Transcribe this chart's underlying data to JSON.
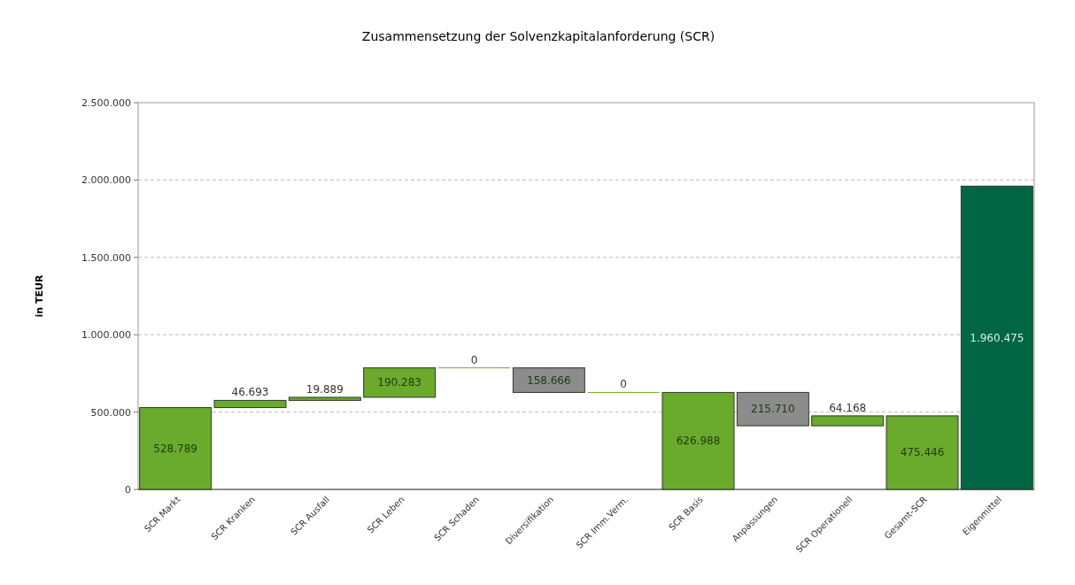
{
  "chart_data": {
    "type": "bar",
    "title": "Zusammensetzung der Solvenzkapitalanforderung (SCR)",
    "ylabel": "in TEUR",
    "categories": [
      "SCR Markt",
      "SCR Kranken",
      "SCR Ausfall",
      "SCR Leben",
      "SCR Schaden",
      "Diversifikation",
      "SCR Imm.Verm.",
      "SCR Basis",
      "Anpassungen",
      "SCR Operationell",
      "Gesamt-SCR",
      "Eigenmittel"
    ],
    "values": [
      528789,
      46693,
      19889,
      190283,
      0,
      158666,
      0,
      626988,
      215710,
      64168,
      475446,
      1960475
    ],
    "base": [
      0,
      528789,
      575482,
      595371,
      785654,
      626988,
      626988,
      0,
      411278,
      411278,
      0,
      0
    ],
    "colors": [
      "#6aaa2c",
      "#6aaa2c",
      "#6aaa2c",
      "#6aaa2c",
      "#6aaa2c",
      "#8c8c8c",
      "#6aaa2c",
      "#6aaa2c",
      "#8c8c8c",
      "#6aaa2c",
      "#6aaa2c",
      "#006644"
    ],
    "value_labels": [
      "528.789",
      "46.693",
      "19.889",
      "190.283",
      "0",
      "158.666",
      "0",
      "626.988",
      "215.710",
      "64.168",
      "475.446",
      "1.960.475"
    ],
    "ylim": [
      0,
      2500000
    ],
    "yticks": [
      0,
      {
        "value": 500000,
        "label": "500.000"
      },
      {
        "value": 1000000,
        "label": "1.000.000"
      },
      {
        "value": 1500000,
        "label": "1.500.000"
      },
      {
        "value": 2000000,
        "label": "2.000.000"
      },
      {
        "value": 2500000,
        "label": "2.500.000"
      }
    ],
    "grid": "y"
  }
}
